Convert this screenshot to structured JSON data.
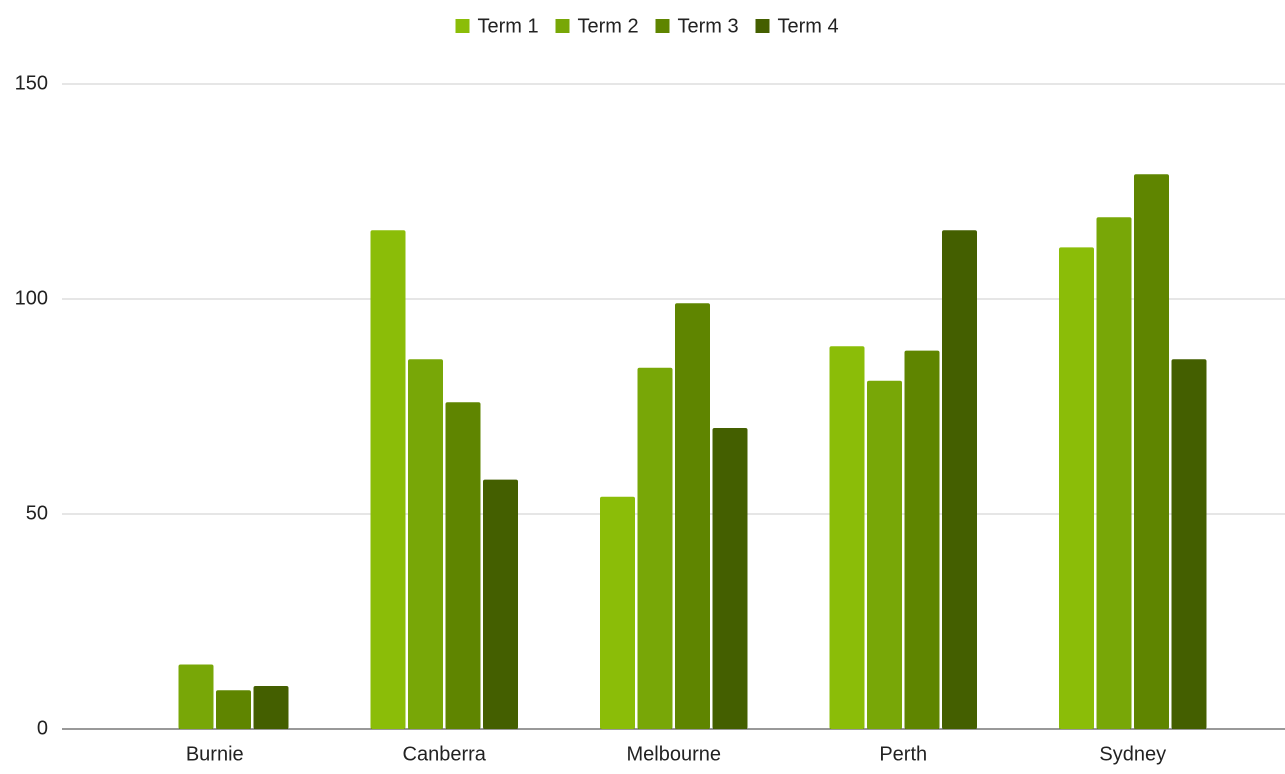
{
  "chart_data": {
    "type": "bar",
    "categories": [
      "Burnie",
      "Canberra",
      "Melbourne",
      "Perth",
      "Sydney"
    ],
    "series": [
      {
        "name": "Term 1",
        "color": "#8bbd08",
        "values": [
          0,
          116,
          54,
          89,
          112
        ]
      },
      {
        "name": "Term 2",
        "color": "#78a707",
        "values": [
          15,
          86,
          84,
          81,
          119
        ]
      },
      {
        "name": "Term 3",
        "color": "#5f8500",
        "values": [
          9,
          76,
          99,
          88,
          129
        ]
      },
      {
        "name": "Term 4",
        "color": "#445f00",
        "values": [
          10,
          58,
          70,
          116,
          86
        ]
      }
    ],
    "ylim": [
      0,
      150
    ],
    "yticks": [
      0,
      50,
      100,
      150
    ],
    "grid": true,
    "legend": "top"
  }
}
